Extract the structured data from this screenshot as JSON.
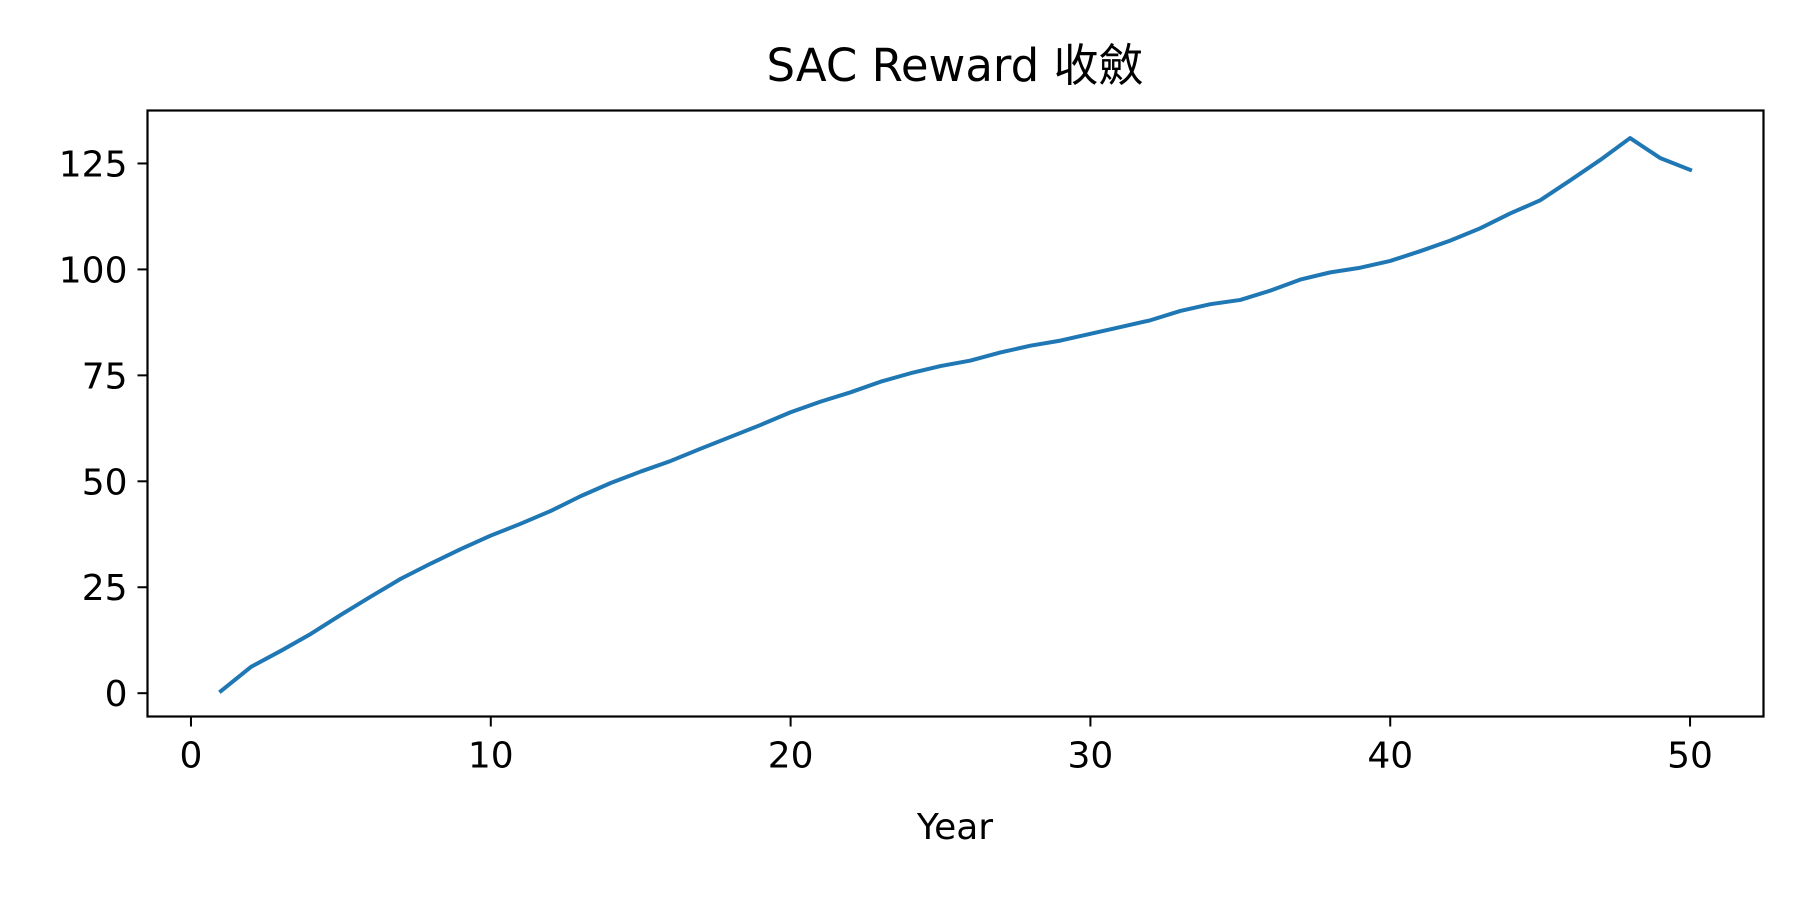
{
  "chart_data": {
    "type": "line",
    "title": "SAC Reward 收斂",
    "xlabel": "Year",
    "ylabel": "",
    "xlim": [
      -1.45,
      52.45
    ],
    "ylim": [
      -5.5,
      137.5
    ],
    "x_ticks": [
      0,
      10,
      20,
      30,
      40,
      50
    ],
    "y_ticks": [
      0,
      25,
      50,
      75,
      100,
      125
    ],
    "grid": false,
    "legend": "none",
    "series": [
      {
        "color": "#1f77b4",
        "x": [
          1,
          2,
          3,
          4,
          5,
          6,
          7,
          8,
          9,
          10,
          11,
          12,
          13,
          14,
          15,
          16,
          17,
          18,
          19,
          20,
          21,
          22,
          23,
          24,
          25,
          26,
          27,
          28,
          29,
          30,
          31,
          32,
          33,
          34,
          35,
          36,
          37,
          38,
          39,
          40,
          41,
          42,
          43,
          44,
          45,
          46,
          47,
          48,
          49,
          50
        ],
        "values": [
          0.5,
          6.2,
          10,
          14,
          18.5,
          22.8,
          27,
          30.6,
          34,
          37.2,
          40,
          43,
          46.5,
          49.6,
          52.3,
          54.8,
          57.7,
          60.5,
          63.3,
          66.3,
          68.8,
          71,
          73.5,
          75.5,
          77.2,
          78.5,
          80.4,
          82,
          83.2,
          84.8,
          86.4,
          88,
          90.2,
          91.8,
          92.8,
          95,
          97.6,
          99.3,
          100.4,
          102,
          104.3,
          106.8,
          109.7,
          113.2,
          116.3,
          121,
          125.8,
          131,
          126.3,
          123.5
        ]
      }
    ]
  }
}
